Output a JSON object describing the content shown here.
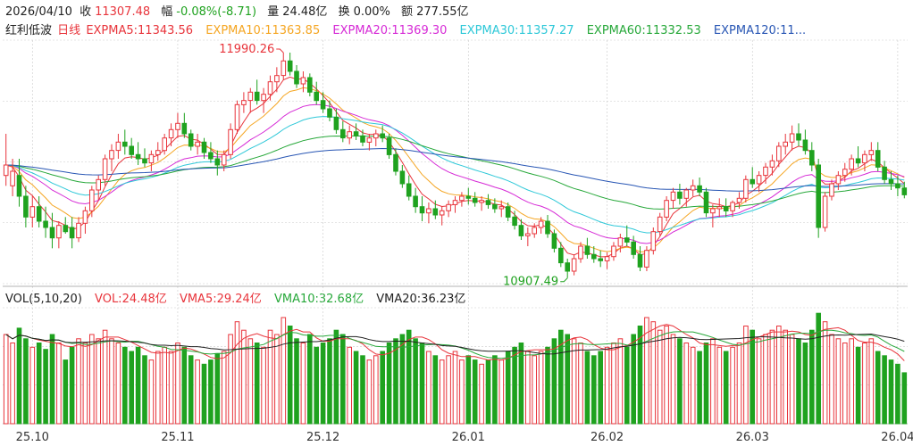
{
  "header": {
    "date": "2026/04/10",
    "close_label": "收",
    "close": "11307.48",
    "change_label": "幅",
    "change": "-0.08%(-8.71)",
    "volume_label": "量",
    "volume": "24.48亿",
    "turnover_label": "换",
    "turnover": "0.00%",
    "amount_label": "额",
    "amount": "277.55亿"
  },
  "indicators": {
    "name": "红利低波",
    "period": "日线",
    "ema5": "EXPMA5:11343.56",
    "ema10": "EXPMA10:11363.85",
    "ema20": "EXPMA20:11369.30",
    "ema30": "EXPMA30:11357.27",
    "ema60": "EXPMA60:11332.53",
    "ema120": "EXPMA120:11..."
  },
  "volume_header": {
    "title": "VOL(5,10,20)",
    "vol": "VOL:24.48亿",
    "vma5": "VMA5:29.24亿",
    "vma10": "VMA10:32.68亿",
    "vma20": "VMA20:36.23亿"
  },
  "colors": {
    "up": "#e8343b",
    "down": "#1fa21f",
    "ema5": "#e8343b",
    "ema10": "#f5a623",
    "ema20": "#d62ad6",
    "ema30": "#2ec8d8",
    "ema60": "#27a83a",
    "ema120": "#2856b4",
    "grid": "#c9c9c9"
  },
  "chart_data": {
    "type": "candlestick",
    "x_labels": [
      "25.10",
      "25.11",
      "25.12",
      "26.01",
      "26.02",
      "26.03",
      "26.04"
    ],
    "price_annotations": {
      "high": "11990.26",
      "low": "10907.49"
    },
    "price_range": [
      10880,
      12050
    ],
    "volume_unit": "亿",
    "candles": [
      [
        11400,
        11600,
        11350,
        11450,
        42
      ],
      [
        11350,
        11480,
        11300,
        11420,
        38
      ],
      [
        11400,
        11480,
        11250,
        11300,
        45
      ],
      [
        11300,
        11350,
        11150,
        11200,
        40
      ],
      [
        11200,
        11300,
        11150,
        11250,
        36
      ],
      [
        11250,
        11300,
        11150,
        11180,
        38
      ],
      [
        11180,
        11250,
        11100,
        11150,
        35
      ],
      [
        11150,
        11220,
        11050,
        11100,
        42
      ],
      [
        11100,
        11180,
        11050,
        11160,
        38
      ],
      [
        11160,
        11200,
        11120,
        11130,
        30
      ],
      [
        11150,
        11200,
        11050,
        11100,
        36
      ],
      [
        11100,
        11200,
        11080,
        11170,
        40
      ],
      [
        11170,
        11250,
        11120,
        11230,
        38
      ],
      [
        11230,
        11350,
        11200,
        11330,
        42
      ],
      [
        11330,
        11400,
        11280,
        11380,
        40
      ],
      [
        11380,
        11500,
        11350,
        11480,
        44
      ],
      [
        11480,
        11550,
        11420,
        11520,
        40
      ],
      [
        11520,
        11600,
        11480,
        11560,
        38
      ],
      [
        11560,
        11620,
        11500,
        11540,
        36
      ],
      [
        11540,
        11580,
        11480,
        11500,
        34
      ],
      [
        11500,
        11560,
        11450,
        11480,
        36
      ],
      [
        11480,
        11530,
        11440,
        11460,
        32
      ],
      [
        11460,
        11520,
        11420,
        11500,
        30
      ],
      [
        11500,
        11560,
        11470,
        11520,
        34
      ],
      [
        11520,
        11600,
        11500,
        11580,
        36
      ],
      [
        11580,
        11650,
        11540,
        11620,
        34
      ],
      [
        11620,
        11700,
        11580,
        11650,
        38
      ],
      [
        11650,
        11700,
        11580,
        11600,
        36
      ],
      [
        11600,
        11620,
        11520,
        11540,
        32
      ],
      [
        11540,
        11600,
        11500,
        11560,
        30
      ],
      [
        11560,
        11580,
        11480,
        11510,
        28
      ],
      [
        11510,
        11560,
        11460,
        11480,
        30
      ],
      [
        11480,
        11520,
        11400,
        11450,
        33
      ],
      [
        11450,
        11520,
        11420,
        11500,
        34
      ],
      [
        11500,
        11650,
        11480,
        11620,
        42
      ],
      [
        11620,
        11760,
        11600,
        11740,
        48
      ],
      [
        11740,
        11800,
        11700,
        11760,
        44
      ],
      [
        11760,
        11820,
        11700,
        11800,
        40
      ],
      [
        11800,
        11860,
        11740,
        11760,
        38
      ],
      [
        11760,
        11820,
        11700,
        11790,
        36
      ],
      [
        11790,
        11880,
        11760,
        11850,
        44
      ],
      [
        11850,
        11920,
        11800,
        11880,
        42
      ],
      [
        11880,
        11990,
        11860,
        11950,
        50
      ],
      [
        11950,
        11990,
        11880,
        11900,
        46
      ],
      [
        11900,
        11930,
        11820,
        11840,
        40
      ],
      [
        11840,
        11900,
        11800,
        11870,
        38
      ],
      [
        11870,
        11890,
        11780,
        11800,
        42
      ],
      [
        11800,
        11850,
        11740,
        11760,
        36
      ],
      [
        11760,
        11800,
        11700,
        11720,
        38
      ],
      [
        11720,
        11760,
        11660,
        11680,
        40
      ],
      [
        11680,
        11720,
        11600,
        11620,
        44
      ],
      [
        11620,
        11660,
        11560,
        11580,
        42
      ],
      [
        11580,
        11640,
        11550,
        11610,
        36
      ],
      [
        11610,
        11650,
        11570,
        11590,
        34
      ],
      [
        11590,
        11620,
        11540,
        11560,
        32
      ],
      [
        11560,
        11600,
        11520,
        11580,
        30
      ],
      [
        11580,
        11620,
        11540,
        11600,
        32
      ],
      [
        11600,
        11640,
        11560,
        11580,
        34
      ],
      [
        11580,
        11600,
        11480,
        11500,
        38
      ],
      [
        11500,
        11530,
        11400,
        11420,
        40
      ],
      [
        11420,
        11450,
        11340,
        11360,
        42
      ],
      [
        11360,
        11400,
        11280,
        11300,
        44
      ],
      [
        11300,
        11340,
        11220,
        11250,
        40
      ],
      [
        11250,
        11300,
        11180,
        11220,
        38
      ],
      [
        11220,
        11270,
        11170,
        11240,
        34
      ],
      [
        11240,
        11280,
        11190,
        11210,
        32
      ],
      [
        11210,
        11250,
        11160,
        11230,
        30
      ],
      [
        11230,
        11280,
        11200,
        11260,
        32
      ],
      [
        11260,
        11300,
        11220,
        11280,
        34
      ],
      [
        11280,
        11320,
        11250,
        11300,
        30
      ],
      [
        11300,
        11340,
        11260,
        11290,
        32
      ],
      [
        11290,
        11320,
        11250,
        11270,
        30
      ],
      [
        11270,
        11300,
        11230,
        11280,
        28
      ],
      [
        11280,
        11310,
        11240,
        11260,
        30
      ],
      [
        11260,
        11290,
        11220,
        11240,
        32
      ],
      [
        11240,
        11280,
        11200,
        11250,
        30
      ],
      [
        11250,
        11270,
        11180,
        11200,
        34
      ],
      [
        11200,
        11230,
        11140,
        11160,
        36
      ],
      [
        11160,
        11190,
        11090,
        11110,
        38
      ],
      [
        11110,
        11150,
        11060,
        11120,
        34
      ],
      [
        11120,
        11170,
        11100,
        11150,
        32
      ],
      [
        11150,
        11200,
        11120,
        11180,
        34
      ],
      [
        11180,
        11210,
        11100,
        11120,
        36
      ],
      [
        11120,
        11140,
        11030,
        11050,
        40
      ],
      [
        11050,
        11080,
        10960,
        10980,
        44
      ],
      [
        10980,
        11000,
        10907,
        10940,
        42
      ],
      [
        10940,
        11020,
        10920,
        11000,
        40
      ],
      [
        11000,
        11080,
        10980,
        11060,
        38
      ],
      [
        11060,
        11100,
        11000,
        11020,
        34
      ],
      [
        11020,
        11060,
        10980,
        11000,
        32
      ],
      [
        11000,
        11040,
        10960,
        10990,
        34
      ],
      [
        10990,
        11030,
        10950,
        11010,
        36
      ],
      [
        11010,
        11080,
        10990,
        11060,
        38
      ],
      [
        11060,
        11120,
        11030,
        11100,
        40
      ],
      [
        11100,
        11160,
        11060,
        11080,
        36
      ],
      [
        11080,
        11110,
        11000,
        11020,
        42
      ],
      [
        11020,
        11060,
        10940,
        10960,
        46
      ],
      [
        10960,
        11060,
        10940,
        11040,
        50
      ],
      [
        11040,
        11150,
        11020,
        11130,
        48
      ],
      [
        11130,
        11220,
        11110,
        11200,
        44
      ],
      [
        11200,
        11300,
        11180,
        11280,
        46
      ],
      [
        11280,
        11340,
        11240,
        11320,
        42
      ],
      [
        11320,
        11360,
        11260,
        11290,
        40
      ],
      [
        11290,
        11340,
        11250,
        11330,
        38
      ],
      [
        11330,
        11380,
        11300,
        11350,
        36
      ],
      [
        11350,
        11390,
        11300,
        11320,
        34
      ],
      [
        11320,
        11340,
        11200,
        11220,
        38
      ],
      [
        11220,
        11260,
        11150,
        11240,
        40
      ],
      [
        11240,
        11290,
        11200,
        11250,
        36
      ],
      [
        11250,
        11290,
        11200,
        11230,
        34
      ],
      [
        11230,
        11280,
        11200,
        11270,
        36
      ],
      [
        11270,
        11320,
        11240,
        11290,
        38
      ],
      [
        11290,
        11400,
        11270,
        11380,
        46
      ],
      [
        11380,
        11440,
        11340,
        11360,
        44
      ],
      [
        11360,
        11420,
        11320,
        11400,
        40
      ],
      [
        11400,
        11460,
        11360,
        11440,
        42
      ],
      [
        11440,
        11500,
        11400,
        11470,
        44
      ],
      [
        11470,
        11560,
        11440,
        11540,
        46
      ],
      [
        11540,
        11600,
        11500,
        11560,
        44
      ],
      [
        11560,
        11640,
        11520,
        11600,
        42
      ],
      [
        11600,
        11650,
        11540,
        11570,
        40
      ],
      [
        11570,
        11620,
        11500,
        11520,
        38
      ],
      [
        11520,
        11560,
        11420,
        11450,
        44
      ],
      [
        11450,
        11480,
        11100,
        11150,
        52
      ],
      [
        11150,
        11320,
        11130,
        11300,
        48
      ],
      [
        11300,
        11380,
        11280,
        11360,
        42
      ],
      [
        11360,
        11420,
        11330,
        11400,
        40
      ],
      [
        11400,
        11460,
        11370,
        11430,
        38
      ],
      [
        11430,
        11500,
        11400,
        11480,
        40
      ],
      [
        11480,
        11540,
        11440,
        11460,
        36
      ],
      [
        11460,
        11520,
        11420,
        11500,
        38
      ],
      [
        11500,
        11560,
        11470,
        11520,
        40
      ],
      [
        11520,
        11560,
        11420,
        11440,
        34
      ],
      [
        11440,
        11470,
        11360,
        11380,
        32
      ],
      [
        11380,
        11420,
        11330,
        11360,
        30
      ],
      [
        11360,
        11400,
        11300,
        11340,
        28
      ],
      [
        11340,
        11370,
        11290,
        11307,
        24
      ]
    ],
    "ema_series": [
      {
        "name": "EXPMA5",
        "color": "#e8343b"
      },
      {
        "name": "EXPMA10",
        "color": "#f5a623"
      },
      {
        "name": "EXPMA20",
        "color": "#d62ad6"
      },
      {
        "name": "EXPMA30",
        "color": "#2ec8d8"
      },
      {
        "name": "EXPMA60",
        "color": "#27a83a"
      },
      {
        "name": "EXPMA120",
        "color": "#2856b4"
      }
    ],
    "vma_series": [
      {
        "name": "VMA5",
        "color": "#e8343b"
      },
      {
        "name": "VMA10",
        "color": "#27a83a"
      },
      {
        "name": "VMA20",
        "color": "#222222"
      }
    ]
  }
}
